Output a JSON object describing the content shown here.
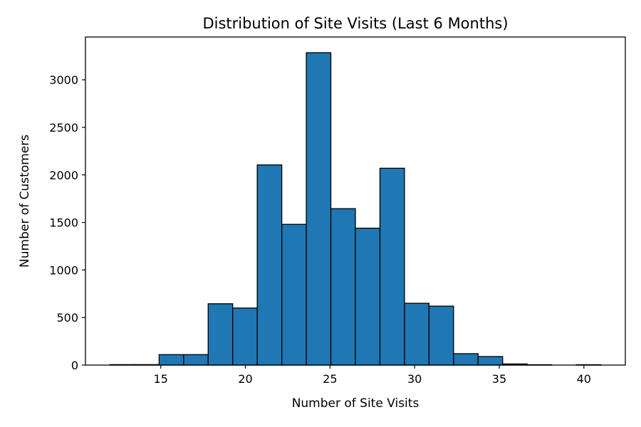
{
  "chart_data": {
    "type": "bar",
    "title": "Distribution of Site Visits (Last 6 Months)",
    "xlabel": "Number of Site Visits",
    "ylabel": "Number of Customers",
    "xlim": [
      10.55,
      42.45
    ],
    "ylim": [
      0,
      3450
    ],
    "x_ticks": [
      15,
      20,
      25,
      30,
      35,
      40
    ],
    "y_ticks": [
      0,
      500,
      1000,
      1500,
      2000,
      2500,
      3000
    ],
    "bin_width": 1.45,
    "bins": [
      {
        "start": 12.0,
        "value": 5
      },
      {
        "start": 13.45,
        "value": 5
      },
      {
        "start": 14.9,
        "value": 110
      },
      {
        "start": 16.35,
        "value": 110
      },
      {
        "start": 17.8,
        "value": 645
      },
      {
        "start": 19.25,
        "value": 600
      },
      {
        "start": 20.7,
        "value": 2105
      },
      {
        "start": 22.15,
        "value": 1480
      },
      {
        "start": 23.6,
        "value": 3285
      },
      {
        "start": 25.05,
        "value": 1645
      },
      {
        "start": 26.5,
        "value": 1440
      },
      {
        "start": 27.95,
        "value": 2070
      },
      {
        "start": 29.4,
        "value": 650
      },
      {
        "start": 30.85,
        "value": 620
      },
      {
        "start": 32.3,
        "value": 120
      },
      {
        "start": 33.75,
        "value": 90
      },
      {
        "start": 35.2,
        "value": 12
      },
      {
        "start": 36.65,
        "value": 4
      },
      {
        "start": 38.1,
        "value": 0
      },
      {
        "start": 39.55,
        "value": 4
      }
    ],
    "bar_color": "#1f77b4",
    "edge_color": "#000000",
    "grid": false,
    "legend": "none"
  }
}
